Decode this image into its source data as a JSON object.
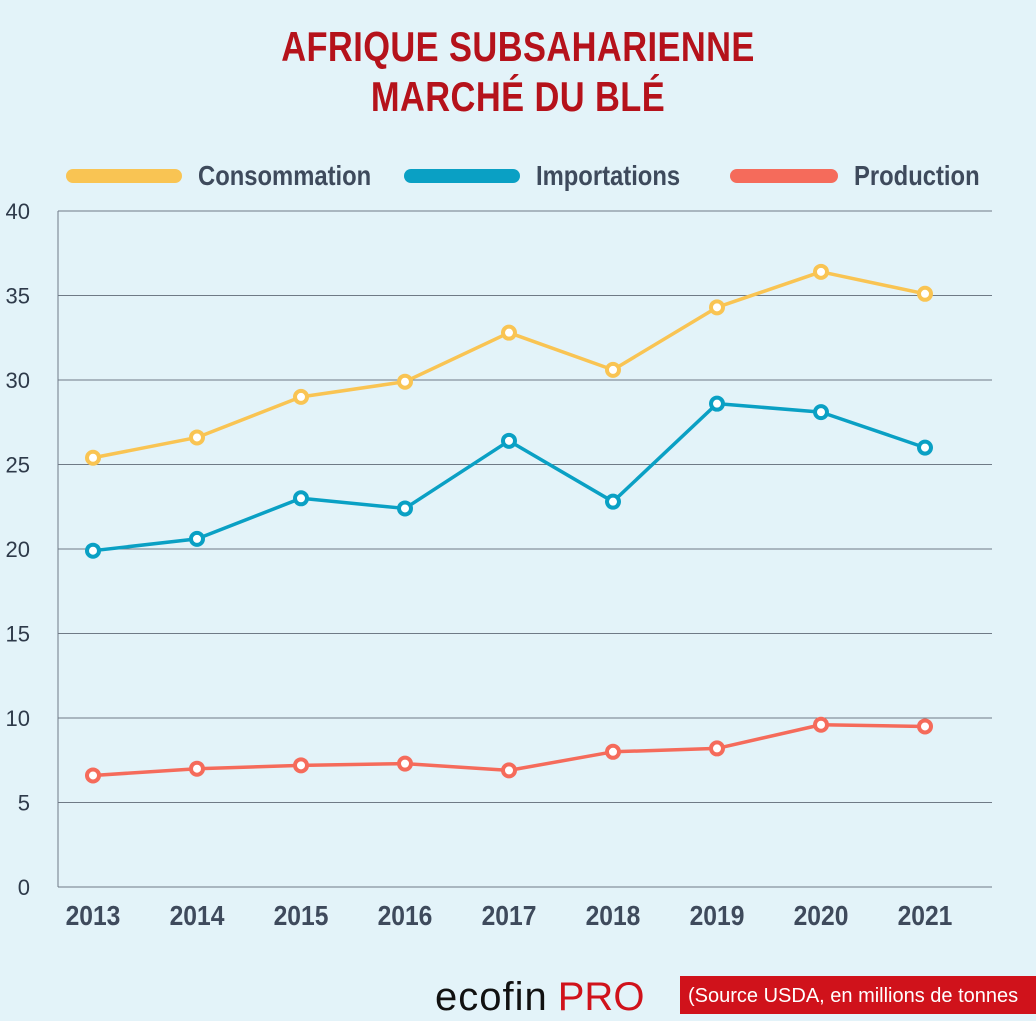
{
  "chart_data": {
    "type": "line",
    "title": "AFRIQUE SUBSAHARIENNE",
    "subtitle": "MARCHÉ DU BLÉ",
    "x": [
      "2013",
      "2014",
      "2015",
      "2016",
      "2017",
      "2018",
      "2019",
      "2020",
      "2021"
    ],
    "series": [
      {
        "name": "Consommation",
        "color": "#f9c453",
        "values": [
          25.4,
          26.6,
          29.0,
          29.9,
          32.8,
          30.6,
          34.3,
          36.4,
          35.1
        ]
      },
      {
        "name": "Importations",
        "color": "#0aa0c4",
        "values": [
          19.9,
          20.6,
          23.0,
          22.4,
          26.4,
          22.8,
          28.6,
          28.1,
          26.0
        ]
      },
      {
        "name": "Production",
        "color": "#f56b5b",
        "values": [
          6.6,
          7.0,
          7.2,
          7.3,
          6.9,
          8.0,
          8.2,
          9.6,
          9.5
        ]
      }
    ],
    "yticks": [
      "0",
      "5",
      "10",
      "15",
      "20",
      "25",
      "30",
      "35",
      "40"
    ],
    "ylim": [
      0,
      40
    ],
    "grid": true,
    "legend": "top",
    "xlabel": "",
    "ylabel": ""
  },
  "footer": {
    "logo_main": "ecofin",
    "logo_pro": "PRO",
    "source": "(Source USDA, en millions de tonnes"
  }
}
